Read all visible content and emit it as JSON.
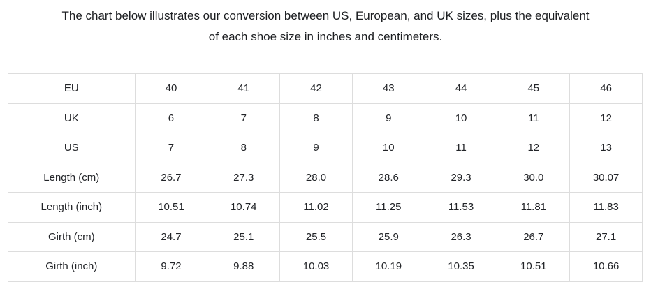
{
  "page": {
    "title_line1": "The chart below illustrates our conversion between US, European, and UK sizes, plus the equivalent",
    "title_line2": "of each shoe size in inches and centimeters."
  },
  "colors": {
    "background": "#ffffff",
    "text": "#222428",
    "table_border": "#dddddd"
  },
  "chart_data": {
    "type": "table",
    "title": "The chart below illustrates our conversion between US, European, and UK sizes, plus the equivalent of each shoe size in inches and centimeters.",
    "row_labels": [
      "EU",
      "UK",
      "US",
      "Length (cm)",
      "Length (inch)",
      "Girth (cm)",
      "Girth (inch)"
    ],
    "rows": [
      {
        "label": "EU",
        "values": [
          "40",
          "41",
          "42",
          "43",
          "44",
          "45",
          "46"
        ]
      },
      {
        "label": "UK",
        "values": [
          "6",
          "7",
          "8",
          "9",
          "10",
          "11",
          "12"
        ]
      },
      {
        "label": "US",
        "values": [
          "7",
          "8",
          "9",
          "10",
          "11",
          "12",
          "13"
        ]
      },
      {
        "label": "Length (cm)",
        "values": [
          "26.7",
          "27.3",
          "28.0",
          "28.6",
          "29.3",
          "30.0",
          "30.07"
        ]
      },
      {
        "label": "Length (inch)",
        "values": [
          "10.51",
          "10.74",
          "11.02",
          "11.25",
          "11.53",
          "11.81",
          "11.83"
        ]
      },
      {
        "label": "Girth (cm)",
        "values": [
          "24.7",
          "25.1",
          "25.5",
          "25.9",
          "26.3",
          "26.7",
          "27.1"
        ]
      },
      {
        "label": "Girth (inch)",
        "values": [
          "9.72",
          "9.88",
          "10.03",
          "10.19",
          "10.35",
          "10.51",
          "10.66"
        ]
      }
    ]
  }
}
